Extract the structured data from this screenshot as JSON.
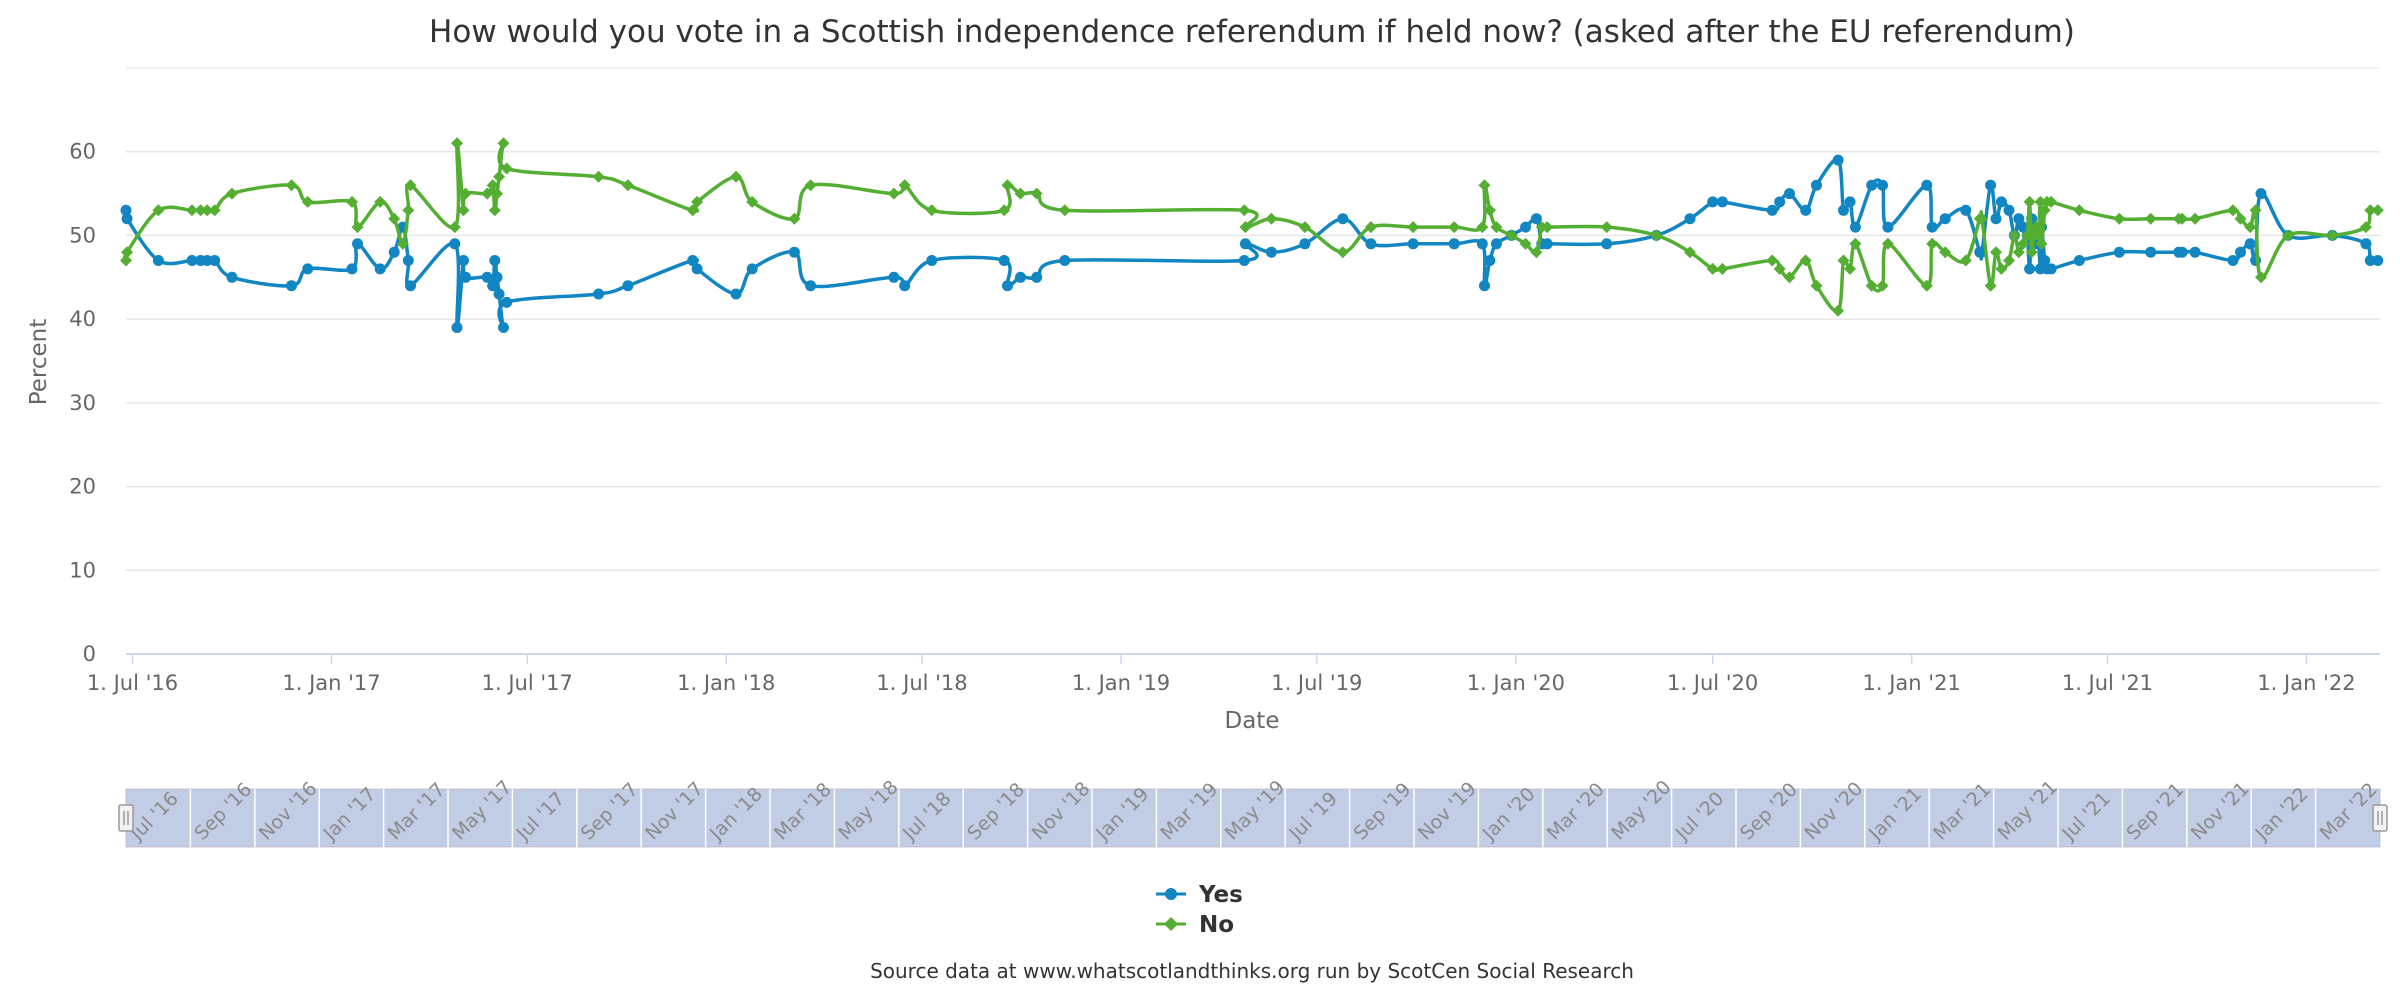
{
  "chart_data": {
    "type": "line",
    "title": "How would you vote in a Scottish independence referendum if held now? (asked after the EU referendum)",
    "xlabel": "Date",
    "ylabel": "Percent",
    "ylim": [
      0,
      70
    ],
    "yticks": [
      0,
      10,
      20,
      30,
      40,
      50,
      60
    ],
    "xlim": [
      "2016-06-25",
      "2022-03-10"
    ],
    "xticks": [
      {
        "date": "2016-07-01",
        "label": "1. Jul '16"
      },
      {
        "date": "2017-01-01",
        "label": "1. Jan '17"
      },
      {
        "date": "2017-07-01",
        "label": "1. Jul '17"
      },
      {
        "date": "2018-01-01",
        "label": "1. Jan '18"
      },
      {
        "date": "2018-07-01",
        "label": "1. Jul '18"
      },
      {
        "date": "2019-01-01",
        "label": "1. Jan '19"
      },
      {
        "date": "2019-07-01",
        "label": "1. Jul '19"
      },
      {
        "date": "2020-01-01",
        "label": "1. Jan '20"
      },
      {
        "date": "2020-07-01",
        "label": "1. Jul '20"
      },
      {
        "date": "2021-01-01",
        "label": "1. Jan '21"
      },
      {
        "date": "2021-07-01",
        "label": "1. Jul '21"
      },
      {
        "date": "2022-01-01",
        "label": "1. Jan '22"
      }
    ],
    "grid": true,
    "legend_position": "bottom-center",
    "x": [
      "2016-06-25",
      "2016-06-26",
      "2016-07-25",
      "2016-08-25",
      "2016-09-02",
      "2016-09-08",
      "2016-09-15",
      "2016-10-01",
      "2016-11-25",
      "2016-12-10",
      "2017-01-20",
      "2017-01-25",
      "2017-02-15",
      "2017-02-28",
      "2017-03-08",
      "2017-03-13",
      "2017-03-15",
      "2017-04-25",
      "2017-04-27",
      "2017-05-03",
      "2017-05-05",
      "2017-05-25",
      "2017-05-30",
      "2017-06-01",
      "2017-06-03",
      "2017-06-05",
      "2017-06-09",
      "2017-06-12",
      "2017-09-05",
      "2017-10-02",
      "2017-12-01",
      "2017-12-05",
      "2018-01-10",
      "2018-01-25",
      "2018-03-05",
      "2018-03-20",
      "2018-06-05",
      "2018-06-15",
      "2018-07-10",
      "2018-09-15",
      "2018-09-18",
      "2018-09-30",
      "2018-10-15",
      "2018-11-10",
      "2019-04-25",
      "2019-04-26",
      "2019-05-20",
      "2019-06-20",
      "2019-07-25",
      "2019-08-20",
      "2019-09-28",
      "2019-11-05",
      "2019-12-01",
      "2019-12-03",
      "2019-12-08",
      "2019-12-14",
      "2019-12-28",
      "2020-01-10",
      "2020-01-20",
      "2020-01-25",
      "2020-01-30",
      "2020-03-25",
      "2020-05-10",
      "2020-06-10",
      "2020-07-01",
      "2020-07-10",
      "2020-08-25",
      "2020-09-01",
      "2020-09-10",
      "2020-09-25",
      "2020-10-05",
      "2020-10-25",
      "2020-10-30",
      "2020-11-05",
      "2020-11-10",
      "2020-11-25",
      "2020-12-05",
      "2020-12-10",
      "2021-01-15",
      "2021-01-20",
      "2021-02-01",
      "2021-02-20",
      "2021-03-05",
      "2021-03-07",
      "2021-03-15",
      "2021-03-20",
      "2021-03-25",
      "2021-04-01",
      "2021-04-06",
      "2021-04-10",
      "2021-04-14",
      "2021-04-18",
      "2021-04-20",
      "2021-04-22",
      "2021-04-24",
      "2021-04-26",
      "2021-04-28",
      "2021-04-30",
      "2021-05-01",
      "2021-05-04",
      "2021-05-06",
      "2021-05-10",
      "2021-06-05",
      "2021-07-12",
      "2021-08-10",
      "2021-09-05",
      "2021-09-08",
      "2021-09-20",
      "2021-10-25",
      "2021-11-01",
      "2021-11-10",
      "2021-11-15",
      "2021-11-20",
      "2021-12-15",
      "2022-01-25",
      "2022-02-25",
      "2022-03-01",
      "2022-03-08"
    ],
    "series": [
      {
        "name": "Yes",
        "color": "#1186c3",
        "marker": "circle",
        "values": [
          53,
          52,
          47,
          47,
          47,
          47,
          47,
          45,
          44,
          46,
          46,
          49,
          46,
          48,
          51,
          47,
          44,
          49,
          39,
          47,
          45,
          45,
          44,
          47,
          45,
          43,
          39,
          42,
          43,
          44,
          47,
          46,
          43,
          46,
          48,
          44,
          45,
          44,
          47,
          47,
          44,
          45,
          45,
          47,
          47,
          49,
          48,
          49,
          52,
          49,
          49,
          49,
          49,
          44,
          47,
          49,
          50,
          51,
          52,
          49,
          49,
          49,
          50,
          52,
          54,
          54,
          53,
          54,
          55,
          53,
          56,
          59,
          53,
          54,
          51,
          56,
          56,
          51,
          56,
          51,
          52,
          53,
          48,
          48,
          56,
          52,
          54,
          53,
          50,
          52,
          51,
          50,
          46,
          52,
          50,
          49,
          50,
          46,
          51,
          47,
          46,
          46,
          47,
          48,
          48,
          48,
          48,
          48,
          47,
          48,
          49,
          47,
          55,
          50,
          50,
          49,
          47,
          47
        ]
      },
      {
        "name": "No",
        "color": "#54ae32",
        "marker": "diamond",
        "values": [
          47,
          48,
          53,
          53,
          53,
          53,
          53,
          55,
          56,
          54,
          54,
          51,
          54,
          52,
          49,
          53,
          56,
          51,
          61,
          53,
          55,
          55,
          56,
          53,
          55,
          57,
          61,
          58,
          57,
          56,
          53,
          54,
          57,
          54,
          52,
          56,
          55,
          56,
          53,
          53,
          56,
          55,
          55,
          53,
          53,
          51,
          52,
          51,
          48,
          51,
          51,
          51,
          51,
          56,
          53,
          51,
          50,
          49,
          48,
          51,
          51,
          51,
          50,
          48,
          46,
          46,
          47,
          46,
          45,
          47,
          44,
          41,
          47,
          46,
          49,
          44,
          44,
          49,
          44,
          49,
          48,
          47,
          52,
          52,
          44,
          48,
          46,
          47,
          50,
          48,
          49,
          50,
          54,
          48,
          50,
          51,
          50,
          54,
          49,
          53,
          54,
          54,
          53,
          52,
          52,
          52,
          52,
          52,
          53,
          52,
          51,
          53,
          45,
          50,
          50,
          51,
          53,
          53
        ]
      }
    ]
  },
  "navigator": {
    "labels": [
      "Jul '16",
      "Sep '16",
      "Nov '16",
      "Jan '17",
      "Mar '17",
      "May '17",
      "Jul '17",
      "Sep '17",
      "Nov '17",
      "Jan '18",
      "Mar '18",
      "May '18",
      "Jul '18",
      "Sep '18",
      "Nov '18",
      "Jan '19",
      "Mar '19",
      "May '19",
      "Jul '19",
      "Sep '19",
      "Nov '19",
      "Jan '20",
      "Mar '20",
      "May '20",
      "Jul '20",
      "Sep '20",
      "Nov '20",
      "Jan '21",
      "Mar '21",
      "May '21",
      "Jul '21",
      "Sep '21",
      "Nov '21",
      "Jan '22",
      "Mar '22"
    ]
  },
  "legend": {
    "yes_label": "Yes",
    "no_label": "No"
  },
  "credit": "Source data at www.whatscotlandthinks.org run by ScotCen Social Research"
}
